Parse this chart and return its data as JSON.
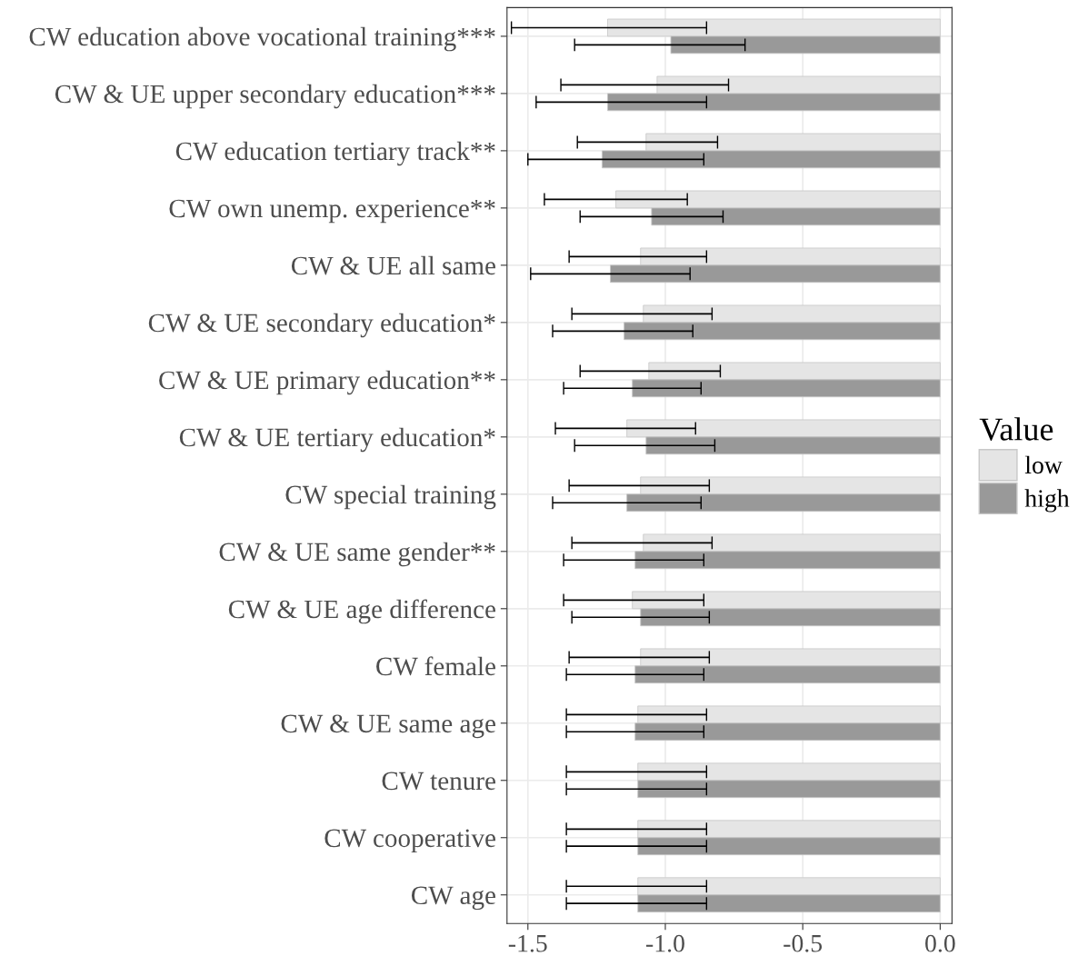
{
  "chart_data": {
    "type": "bar",
    "orientation": "horizontal",
    "categories": [
      "CW education above vocational training***",
      "CW & UE upper secondary education***",
      "CW education tertiary track**",
      "CW own unemp. experience**",
      "CW & UE all same",
      "CW & UE secondary education*",
      "CW & UE primary education**",
      "CW & UE tertiary education*",
      "CW special training",
      "CW & UE same gender**",
      "CW & UE age difference",
      "CW female",
      "CW & UE same age",
      "CW tenure",
      "CW cooperative",
      "CW age"
    ],
    "series": [
      {
        "name": "low",
        "color": "#e5e5e5",
        "values": [
          -1.21,
          -1.03,
          -1.07,
          -1.18,
          -1.09,
          -1.08,
          -1.06,
          -1.14,
          -1.09,
          -1.08,
          -1.12,
          -1.09,
          -1.1,
          -1.1,
          -1.1,
          -1.1
        ],
        "errors": [
          [
            -1.56,
            -0.85
          ],
          [
            -1.38,
            -0.77
          ],
          [
            -1.32,
            -0.81
          ],
          [
            -1.44,
            -0.92
          ],
          [
            -1.35,
            -0.85
          ],
          [
            -1.34,
            -0.83
          ],
          [
            -1.31,
            -0.8
          ],
          [
            -1.4,
            -0.89
          ],
          [
            -1.35,
            -0.84
          ],
          [
            -1.34,
            -0.83
          ],
          [
            -1.37,
            -0.86
          ],
          [
            -1.35,
            -0.84
          ],
          [
            -1.36,
            -0.85
          ],
          [
            -1.36,
            -0.85
          ],
          [
            -1.36,
            -0.85
          ],
          [
            -1.36,
            -0.85
          ]
        ]
      },
      {
        "name": "high",
        "color": "#999999",
        "values": [
          -0.98,
          -1.21,
          -1.23,
          -1.05,
          -1.2,
          -1.15,
          -1.12,
          -1.07,
          -1.14,
          -1.11,
          -1.09,
          -1.11,
          -1.11,
          -1.1,
          -1.1,
          -1.1
        ],
        "errors": [
          [
            -1.33,
            -0.71
          ],
          [
            -1.47,
            -0.85
          ],
          [
            -1.5,
            -0.86
          ],
          [
            -1.31,
            -0.79
          ],
          [
            -1.49,
            -0.91
          ],
          [
            -1.41,
            -0.9
          ],
          [
            -1.37,
            -0.87
          ],
          [
            -1.33,
            -0.82
          ],
          [
            -1.41,
            -0.87
          ],
          [
            -1.37,
            -0.86
          ],
          [
            -1.34,
            -0.84
          ],
          [
            -1.36,
            -0.86
          ],
          [
            -1.36,
            -0.86
          ],
          [
            -1.36,
            -0.85
          ],
          [
            -1.36,
            -0.85
          ],
          [
            -1.36,
            -0.85
          ]
        ]
      }
    ],
    "xlim": [
      -1.576,
      0.043
    ],
    "xticks": [
      -1.5,
      {
        "value": -1,
        "label": "-1.0"
      },
      -0.5,
      {
        "value": 0,
        "label": "0.0"
      }
    ],
    "legend_title": "Value",
    "legend": "right",
    "grid": true
  }
}
